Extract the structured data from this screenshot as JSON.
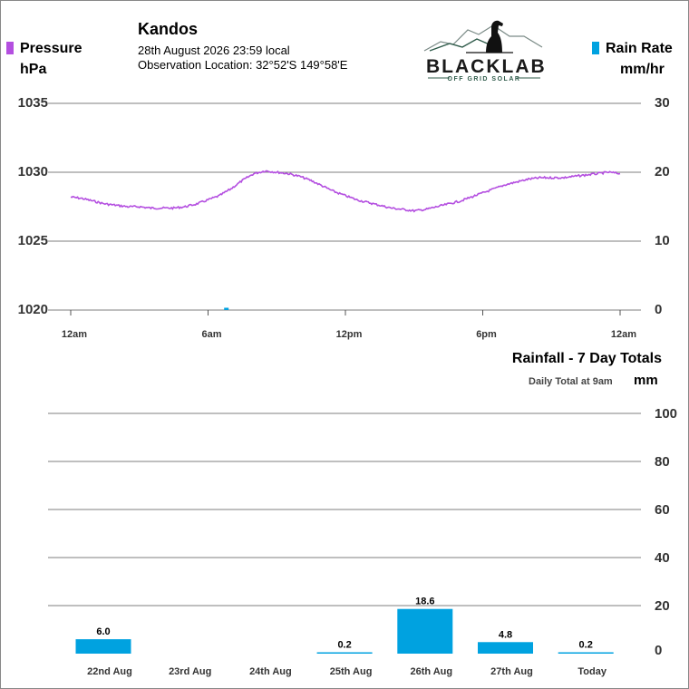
{
  "header": {
    "location": "Kandos",
    "datetime": "28th August 2026  23:59 local",
    "observation": "Observation Location: 32°52'S 149°58'E"
  },
  "logo": {
    "brand": "BLACKLAB",
    "tagline": "OFF GRID SOLAR"
  },
  "legend_left": {
    "label": "Pressure",
    "unit": "hPa",
    "color": "#b44fe0"
  },
  "legend_right": {
    "label": "Rain Rate",
    "unit": "mm/hr",
    "color": "#00a2e0"
  },
  "rainfall_title": "Rainfall - 7 Day Totals",
  "rainfall_subtitle": "Daily Total at 9am",
  "rainfall_unit": "mm",
  "chart_data": [
    {
      "type": "line",
      "x_unit": "hours",
      "x_ticks": [
        0,
        6,
        12,
        18,
        24
      ],
      "x_tick_labels": [
        "12am",
        "6am",
        "12pm",
        "6pm",
        "12am"
      ],
      "y_left_ticks": [
        1020,
        1025,
        1030,
        1035
      ],
      "y_left_tick_labels": [
        "1020",
        "1025",
        "1030",
        "1035"
      ],
      "ylim_left": [
        1020,
        1035
      ],
      "y_right_ticks": [
        0,
        10,
        20,
        30
      ],
      "y_right_tick_labels": [
        "0",
        "10",
        "20",
        "30"
      ],
      "ylim_right": [
        0,
        30
      ],
      "series": [
        {
          "name": "Pressure",
          "axis": "left",
          "color": "#b44fe0",
          "x": [
            0,
            0.5,
            1,
            1.5,
            2,
            2.5,
            3,
            3.5,
            4,
            4.5,
            5,
            5.5,
            6,
            6.5,
            7,
            7.5,
            8,
            8.5,
            9,
            9.5,
            10,
            10.5,
            11,
            11.5,
            12,
            12.5,
            13,
            13.5,
            14,
            14.5,
            15,
            15.5,
            16,
            16.5,
            17,
            17.5,
            18,
            18.5,
            19,
            19.5,
            20,
            20.5,
            21,
            21.5,
            22,
            22.5,
            23,
            23.5,
            24
          ],
          "y": [
            1028.2,
            1028.1,
            1027.9,
            1027.7,
            1027.6,
            1027.5,
            1027.5,
            1027.4,
            1027.4,
            1027.4,
            1027.5,
            1027.7,
            1028.0,
            1028.3,
            1028.8,
            1029.4,
            1029.9,
            1030.1,
            1030.0,
            1029.9,
            1029.7,
            1029.4,
            1029.0,
            1028.6,
            1028.3,
            1028.0,
            1027.8,
            1027.6,
            1027.4,
            1027.3,
            1027.2,
            1027.3,
            1027.5,
            1027.7,
            1027.9,
            1028.2,
            1028.5,
            1028.8,
            1029.1,
            1029.3,
            1029.5,
            1029.6,
            1029.6,
            1029.6,
            1029.7,
            1029.8,
            1029.9,
            1030.0,
            1029.9
          ]
        },
        {
          "name": "Rain Rate",
          "axis": "right",
          "type": "bar",
          "color": "#00a2e0",
          "x": [
            6.8
          ],
          "y": [
            0.2
          ]
        }
      ]
    },
    {
      "type": "bar",
      "title": "Rainfall - 7 Day Totals",
      "subtitle": "Daily Total at 9am",
      "ylabel": "mm",
      "categories": [
        "22nd Aug",
        "23rd Aug",
        "24th Aug",
        "25th Aug",
        "26th Aug",
        "27th Aug",
        "Today"
      ],
      "values": [
        6.0,
        null,
        null,
        0.2,
        18.6,
        4.8,
        0.2
      ],
      "value_labels": [
        "6.0",
        "",
        "",
        "0.2",
        "18.6",
        "4.8",
        "0.2"
      ],
      "ylim": [
        0,
        100
      ],
      "y_ticks": [
        0,
        20,
        40,
        60,
        80,
        100
      ],
      "y_tick_labels": [
        "0",
        "20",
        "40",
        "60",
        "80",
        "100"
      ],
      "color": "#00a2e0"
    }
  ]
}
